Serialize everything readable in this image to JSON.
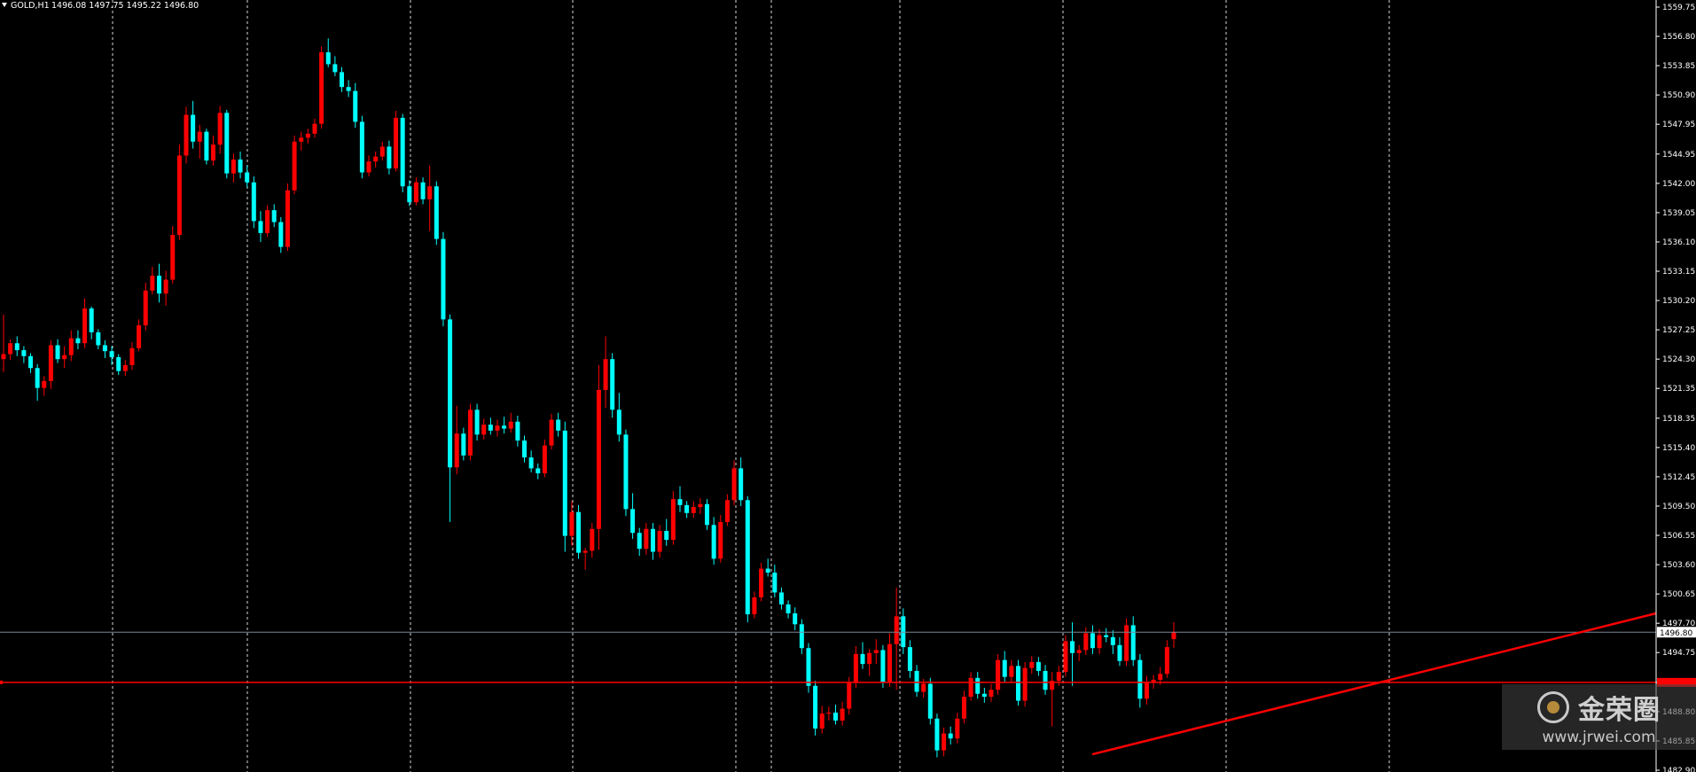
{
  "header": {
    "symbol": "GOLD,H1",
    "ohlc": "1496.08 1497.75 1495.22 1496.80"
  },
  "watermark": {
    "name": "金荣圈",
    "url": "www.jrwei.com"
  },
  "colors": {
    "background": "#000000",
    "bull": "#ff0000",
    "bear": "#00ffff",
    "grid": "#ffffff",
    "bid_line": "#778899",
    "level_line": "#ff0000",
    "trend_line": "#ff0000",
    "axis_text": "#ffffff"
  },
  "chart_data": {
    "type": "candlestick",
    "title": "GOLD,H1",
    "yaxis_ticks": [
      "1559.75",
      "1556.80",
      "1553.85",
      "1550.90",
      "1547.95",
      "1544.95",
      "1542.00",
      "1539.05",
      "1536.10",
      "1533.15",
      "1530.20",
      "1527.25",
      "1524.30",
      "1521.35",
      "1518.35",
      "1515.40",
      "1512.45",
      "1509.50",
      "1506.55",
      "1503.60",
      "1500.65",
      "1497.70",
      "1494.75",
      "1491.75",
      "1488.80",
      "1485.85",
      "1482.90"
    ],
    "ylim": [
      1482.9,
      1559.75
    ],
    "current_price_label": "1496.80",
    "current_price": 1496.8,
    "horizontal_level": 1491.75,
    "trend_line": {
      "from_bar": 0,
      "to_bar": 0
    },
    "grid": "vertical dashed session separators",
    "candles": [
      [
        1524.3,
        1528.8,
        1523.0,
        1524.8
      ],
      [
        1524.8,
        1526.3,
        1524.2,
        1525.9
      ],
      [
        1525.9,
        1526.6,
        1524.6,
        1525.2
      ],
      [
        1525.2,
        1525.6,
        1523.9,
        1524.6
      ],
      [
        1524.6,
        1524.9,
        1522.9,
        1523.4
      ],
      [
        1523.4,
        1523.8,
        1520.1,
        1521.4
      ],
      [
        1521.4,
        1522.6,
        1520.6,
        1522.1
      ],
      [
        1522.1,
        1526.2,
        1521.3,
        1525.7
      ],
      [
        1525.7,
        1526.3,
        1523.9,
        1524.3
      ],
      [
        1524.3,
        1525.6,
        1523.4,
        1524.7
      ],
      [
        1524.7,
        1527.2,
        1524.1,
        1526.4
      ],
      [
        1526.4,
        1527.2,
        1525.3,
        1525.9
      ],
      [
        1525.9,
        1530.4,
        1525.4,
        1529.4
      ],
      [
        1529.4,
        1529.6,
        1526.3,
        1527.0
      ],
      [
        1527.0,
        1527.3,
        1525.3,
        1525.7
      ],
      [
        1525.7,
        1526.2,
        1524.4,
        1525.1
      ],
      [
        1525.1,
        1525.6,
        1523.7,
        1524.5
      ],
      [
        1524.5,
        1524.8,
        1522.7,
        1523.1
      ],
      [
        1523.1,
        1524.2,
        1522.6,
        1523.7
      ],
      [
        1523.7,
        1526.0,
        1523.2,
        1525.4
      ],
      [
        1525.4,
        1528.3,
        1525.1,
        1527.7
      ],
      [
        1527.7,
        1532.0,
        1527.2,
        1531.2
      ],
      [
        1531.2,
        1533.6,
        1530.8,
        1532.7
      ],
      [
        1532.7,
        1533.9,
        1530.0,
        1530.9
      ],
      [
        1530.9,
        1533.2,
        1529.7,
        1532.3
      ],
      [
        1532.3,
        1537.7,
        1531.9,
        1536.8
      ],
      [
        1536.8,
        1545.9,
        1536.3,
        1544.8
      ],
      [
        1544.8,
        1549.7,
        1544.0,
        1548.9
      ],
      [
        1548.9,
        1550.3,
        1545.5,
        1546.2
      ],
      [
        1546.2,
        1547.9,
        1544.5,
        1547.2
      ],
      [
        1547.2,
        1547.5,
        1543.9,
        1544.3
      ],
      [
        1544.3,
        1546.8,
        1543.8,
        1545.9
      ],
      [
        1545.9,
        1549.8,
        1545.0,
        1549.1
      ],
      [
        1549.1,
        1549.4,
        1542.5,
        1543.0
      ],
      [
        1543.0,
        1545.0,
        1542.1,
        1544.4
      ],
      [
        1544.4,
        1545.2,
        1542.5,
        1543.1
      ],
      [
        1543.1,
        1543.8,
        1541.6,
        1542.1
      ],
      [
        1542.1,
        1542.7,
        1537.5,
        1538.2
      ],
      [
        1538.2,
        1539.2,
        1536.1,
        1537.0
      ],
      [
        1537.0,
        1539.8,
        1536.6,
        1539.3
      ],
      [
        1539.3,
        1539.9,
        1537.6,
        1538.1
      ],
      [
        1538.1,
        1538.6,
        1535.0,
        1535.6
      ],
      [
        1535.6,
        1542.0,
        1535.2,
        1541.3
      ],
      [
        1541.3,
        1546.8,
        1540.9,
        1546.2
      ],
      [
        1546.2,
        1547.2,
        1545.3,
        1546.6
      ],
      [
        1546.6,
        1547.5,
        1546.0,
        1547.0
      ],
      [
        1547.0,
        1548.5,
        1546.6,
        1548.0
      ],
      [
        1548.0,
        1555.8,
        1547.5,
        1555.2
      ],
      [
        1555.2,
        1556.6,
        1553.7,
        1554.0
      ],
      [
        1554.0,
        1554.8,
        1552.8,
        1553.2
      ],
      [
        1553.2,
        1553.7,
        1551.2,
        1551.7
      ],
      [
        1551.7,
        1552.4,
        1550.7,
        1551.3
      ],
      [
        1551.3,
        1552.1,
        1547.6,
        1548.2
      ],
      [
        1548.2,
        1548.8,
        1542.5,
        1543.1
      ],
      [
        1543.1,
        1544.8,
        1542.7,
        1544.2
      ],
      [
        1544.2,
        1545.2,
        1543.6,
        1544.7
      ],
      [
        1544.7,
        1546.2,
        1544.3,
        1545.7
      ],
      [
        1545.7,
        1546.3,
        1542.9,
        1543.5
      ],
      [
        1543.5,
        1549.3,
        1543.2,
        1548.6
      ],
      [
        1548.6,
        1549.0,
        1541.1,
        1541.7
      ],
      [
        1541.7,
        1542.3,
        1539.7,
        1540.1
      ],
      [
        1540.1,
        1542.6,
        1539.8,
        1542.1
      ],
      [
        1542.1,
        1542.6,
        1539.9,
        1540.4
      ],
      [
        1540.4,
        1543.8,
        1537.2,
        1541.7
      ],
      [
        1541.7,
        1542.2,
        1535.8,
        1536.4
      ],
      [
        1536.4,
        1537.1,
        1527.6,
        1528.3
      ],
      [
        1528.3,
        1528.8,
        1507.9,
        1513.4
      ],
      [
        1513.4,
        1519.6,
        1512.7,
        1516.8
      ],
      [
        1516.8,
        1517.4,
        1514.1,
        1514.6
      ],
      [
        1514.6,
        1519.8,
        1514.1,
        1519.2
      ],
      [
        1519.2,
        1519.8,
        1516.1,
        1516.7
      ],
      [
        1516.7,
        1518.3,
        1516.2,
        1517.7
      ],
      [
        1517.7,
        1518.4,
        1516.7,
        1517.1
      ],
      [
        1517.1,
        1518.2,
        1516.5,
        1517.6
      ],
      [
        1517.6,
        1518.5,
        1516.8,
        1517.3
      ],
      [
        1517.3,
        1518.9,
        1516.9,
        1518.0
      ],
      [
        1518.0,
        1518.6,
        1515.5,
        1516.1
      ],
      [
        1516.1,
        1516.6,
        1513.9,
        1514.4
      ],
      [
        1514.4,
        1515.1,
        1512.9,
        1513.3
      ],
      [
        1513.3,
        1513.8,
        1512.2,
        1512.8
      ],
      [
        1512.8,
        1516.2,
        1512.4,
        1515.6
      ],
      [
        1515.6,
        1518.8,
        1515.2,
        1518.2
      ],
      [
        1518.2,
        1518.9,
        1516.5,
        1517.1
      ],
      [
        1517.1,
        1518.0,
        1504.9,
        1506.5
      ],
      [
        1506.5,
        1510.0,
        1505.5,
        1508.9
      ],
      [
        1508.9,
        1509.6,
        1504.2,
        1504.8
      ],
      [
        1504.8,
        1505.3,
        1503.1,
        1505.0
      ],
      [
        1505.0,
        1507.8,
        1504.3,
        1507.2
      ],
      [
        1507.2,
        1523.7,
        1505.1,
        1521.2
      ],
      [
        1521.2,
        1526.6,
        1519.4,
        1524.3
      ],
      [
        1524.3,
        1524.9,
        1518.4,
        1519.2
      ],
      [
        1519.2,
        1520.9,
        1516.0,
        1516.7
      ],
      [
        1516.7,
        1517.2,
        1508.5,
        1509.2
      ],
      [
        1509.2,
        1510.8,
        1506.2,
        1506.8
      ],
      [
        1506.8,
        1507.3,
        1504.5,
        1505.2
      ],
      [
        1505.2,
        1507.8,
        1504.6,
        1507.2
      ],
      [
        1507.2,
        1507.8,
        1504.1,
        1504.9
      ],
      [
        1504.9,
        1507.6,
        1504.3,
        1507.0
      ],
      [
        1507.0,
        1508.2,
        1505.5,
        1506.1
      ],
      [
        1506.1,
        1511.0,
        1505.6,
        1510.2
      ],
      [
        1510.2,
        1511.5,
        1508.9,
        1509.6
      ],
      [
        1509.6,
        1510.0,
        1508.3,
        1508.8
      ],
      [
        1508.8,
        1510.0,
        1508.3,
        1509.4
      ],
      [
        1509.4,
        1510.3,
        1508.7,
        1509.7
      ],
      [
        1509.7,
        1510.2,
        1507.1,
        1507.6
      ],
      [
        1507.6,
        1508.4,
        1503.6,
        1504.2
      ],
      [
        1504.2,
        1508.6,
        1503.8,
        1507.9
      ],
      [
        1507.9,
        1510.7,
        1507.5,
        1510.1
      ],
      [
        1510.1,
        1514.1,
        1509.6,
        1513.3
      ],
      [
        1513.3,
        1514.4,
        1509.5,
        1510.1
      ],
      [
        1510.1,
        1510.5,
        1497.8,
        1498.6
      ],
      [
        1498.6,
        1500.9,
        1498.2,
        1500.3
      ],
      [
        1500.3,
        1503.8,
        1499.9,
        1503.2
      ],
      [
        1503.2,
        1504.2,
        1502.4,
        1502.8
      ],
      [
        1502.8,
        1503.6,
        1500.3,
        1500.8
      ],
      [
        1500.8,
        1501.3,
        1499.1,
        1499.6
      ],
      [
        1499.6,
        1500.0,
        1498.2,
        1498.7
      ],
      [
        1498.7,
        1499.3,
        1497.0,
        1497.6
      ],
      [
        1497.6,
        1498.1,
        1494.6,
        1495.2
      ],
      [
        1495.2,
        1495.7,
        1490.7,
        1491.4
      ],
      [
        1491.4,
        1491.9,
        1486.4,
        1487.1
      ],
      [
        1487.1,
        1489.4,
        1486.6,
        1488.6
      ],
      [
        1488.6,
        1489.3,
        1487.9,
        1488.7
      ],
      [
        1488.7,
        1489.5,
        1487.5,
        1487.9
      ],
      [
        1487.9,
        1489.8,
        1487.4,
        1489.1
      ],
      [
        1489.1,
        1492.3,
        1488.5,
        1491.7
      ],
      [
        1491.7,
        1495.4,
        1491.2,
        1494.6
      ],
      [
        1494.6,
        1495.8,
        1493.1,
        1493.6
      ],
      [
        1493.6,
        1495.1,
        1492.4,
        1494.7
      ],
      [
        1494.7,
        1496.1,
        1493.6,
        1495.0
      ],
      [
        1495.0,
        1495.5,
        1491.2,
        1491.8
      ],
      [
        1491.8,
        1496.7,
        1491.3,
        1495.6
      ],
      [
        1495.6,
        1501.3,
        1491.0,
        1498.4
      ],
      [
        1498.4,
        1499.2,
        1494.6,
        1495.3
      ],
      [
        1495.3,
        1496.0,
        1492.2,
        1492.9
      ],
      [
        1492.9,
        1493.5,
        1490.3,
        1490.8
      ],
      [
        1490.8,
        1492.1,
        1490.2,
        1491.6
      ],
      [
        1491.6,
        1492.2,
        1487.5,
        1488.1
      ],
      [
        1488.1,
        1488.6,
        1484.2,
        1484.9
      ],
      [
        1484.9,
        1487.2,
        1484.3,
        1486.6
      ],
      [
        1486.6,
        1487.3,
        1485.5,
        1486.1
      ],
      [
        1486.1,
        1488.7,
        1485.6,
        1488.1
      ],
      [
        1488.1,
        1490.9,
        1487.6,
        1490.3
      ],
      [
        1490.3,
        1492.8,
        1489.9,
        1492.2
      ],
      [
        1492.2,
        1492.8,
        1490.1,
        1490.6
      ],
      [
        1490.6,
        1491.2,
        1489.7,
        1490.3
      ],
      [
        1490.3,
        1491.6,
        1489.8,
        1491.0
      ],
      [
        1491.0,
        1494.6,
        1490.5,
        1494.0
      ],
      [
        1494.0,
        1494.9,
        1491.8,
        1492.3
      ],
      [
        1492.3,
        1494.0,
        1491.8,
        1493.4
      ],
      [
        1493.4,
        1494.0,
        1489.4,
        1489.9
      ],
      [
        1489.9,
        1493.8,
        1489.3,
        1493.2
      ],
      [
        1493.2,
        1494.4,
        1492.6,
        1493.8
      ],
      [
        1493.8,
        1494.3,
        1492.4,
        1492.9
      ],
      [
        1492.9,
        1493.5,
        1490.5,
        1491.0
      ],
      [
        1491.0,
        1492.8,
        1487.3,
        1491.9
      ],
      [
        1491.9,
        1493.4,
        1491.4,
        1492.8
      ],
      [
        1492.8,
        1496.5,
        1492.3,
        1495.9
      ],
      [
        1495.9,
        1497.8,
        1491.4,
        1494.7
      ],
      [
        1494.7,
        1495.5,
        1493.9,
        1495.0
      ],
      [
        1495.0,
        1497.3,
        1494.5,
        1496.7
      ],
      [
        1496.7,
        1497.5,
        1494.6,
        1495.2
      ],
      [
        1495.2,
        1497.1,
        1494.6,
        1496.5
      ],
      [
        1496.5,
        1497.2,
        1495.8,
        1496.3
      ],
      [
        1496.3,
        1497.0,
        1494.6,
        1495.5
      ],
      [
        1495.5,
        1496.3,
        1493.4,
        1493.9
      ],
      [
        1493.9,
        1498.2,
        1493.4,
        1497.5
      ],
      [
        1497.5,
        1498.4,
        1493.4,
        1494.0
      ],
      [
        1494.0,
        1494.6,
        1489.2,
        1490.1
      ],
      [
        1490.1,
        1492.4,
        1489.5,
        1491.8
      ],
      [
        1491.8,
        1492.5,
        1491.1,
        1492.0
      ],
      [
        1492.0,
        1493.3,
        1491.5,
        1492.6
      ],
      [
        1492.6,
        1496.0,
        1492.2,
        1495.3
      ],
      [
        1496.1,
        1497.8,
        1495.2,
        1496.8
      ]
    ]
  }
}
